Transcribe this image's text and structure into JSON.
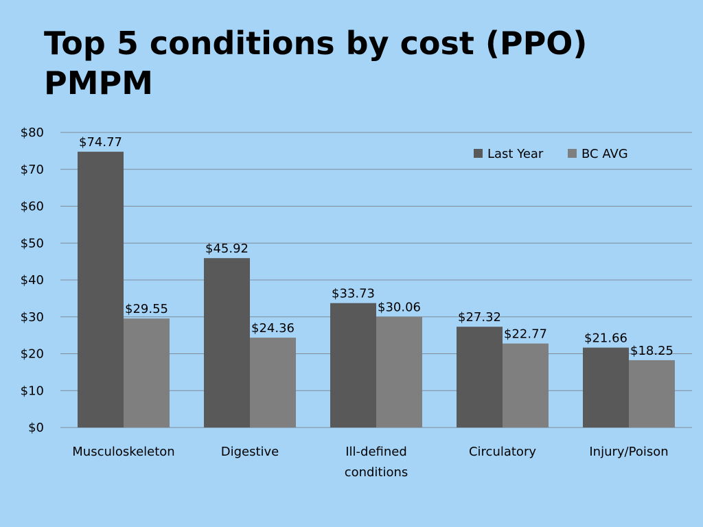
{
  "slide": {
    "title": "Top 5 conditions by cost (PPO) PMPM"
  },
  "colors": {
    "background": "#a6d4f7",
    "last_year": "#595959",
    "bc_avg": "#7f7f7f",
    "gridline": "#7f8c99"
  },
  "chart_data": {
    "type": "bar",
    "title": "",
    "xlabel": "",
    "ylabel": "",
    "categories": [
      [
        "Musculoskeleton"
      ],
      [
        "Digestive"
      ],
      [
        "Ill-defined",
        "conditions"
      ],
      [
        "Circulatory"
      ],
      [
        "Injury/Poison"
      ]
    ],
    "series": [
      {
        "name": "Last Year",
        "values": [
          74.77,
          45.92,
          33.73,
          27.32,
          21.66
        ],
        "labels": [
          "$74.77",
          "$45.92",
          "$33.73",
          "$27.32",
          "$21.66"
        ]
      },
      {
        "name": "BC AVG",
        "values": [
          29.55,
          24.36,
          30.06,
          22.77,
          18.25
        ],
        "labels": [
          "$29.55",
          "$24.36",
          "$30.06",
          "$22.77",
          "$18.25"
        ]
      }
    ],
    "ylim": [
      0,
      80
    ],
    "yticks": [
      0,
      10,
      20,
      30,
      40,
      50,
      60,
      70,
      80
    ],
    "ytick_labels": [
      "$0",
      "$10",
      "$20",
      "$30",
      "$40",
      "$50",
      "$60",
      "$70",
      "$80"
    ],
    "grid": true,
    "legend_position": "top-right"
  }
}
